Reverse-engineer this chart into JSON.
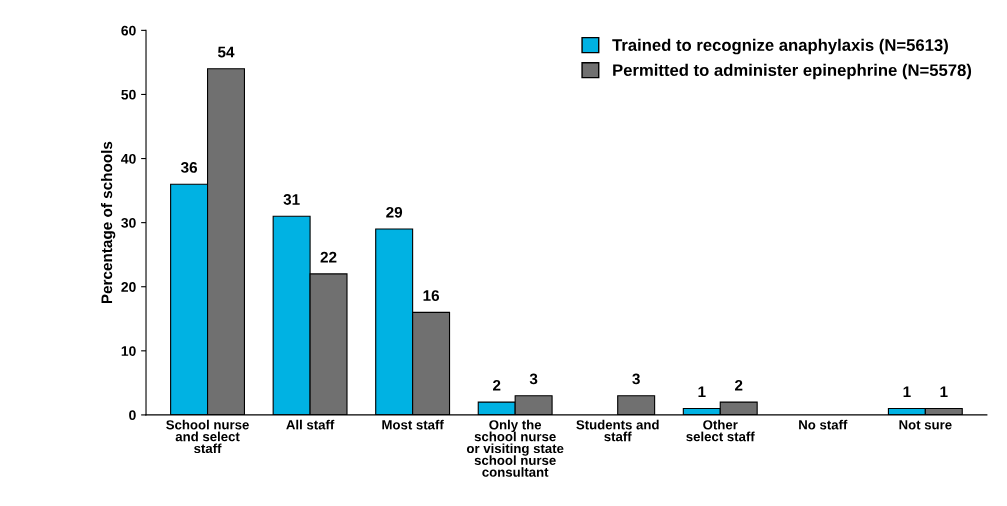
{
  "chart_data": {
    "type": "bar",
    "ylabel": "Percentage of schools",
    "categories": [
      "School nurse\nand select\nstaff",
      "All staff",
      "Most staff",
      "Only the\nschool nurse\nor visiting state\nschool nurse\nconsultant",
      "Students and\nstaff",
      "Other\nselect staff",
      "No staff",
      "Not sure"
    ],
    "series": [
      {
        "name": "Trained to recognize anaphylaxis (N=5613)",
        "color": "#00b2e3",
        "values": [
          36,
          31,
          29,
          2,
          null,
          1,
          null,
          1
        ]
      },
      {
        "name": "Permitted to administer epinephrine (N=5578)",
        "color": "#707070",
        "values": [
          54,
          22,
          16,
          3,
          3,
          2,
          null,
          1
        ]
      }
    ],
    "ylim": [
      0,
      60
    ],
    "yticks": [
      0,
      10,
      20,
      30,
      40,
      50,
      60
    ],
    "data_labels": true,
    "legend": "top right",
    "grid": false
  }
}
